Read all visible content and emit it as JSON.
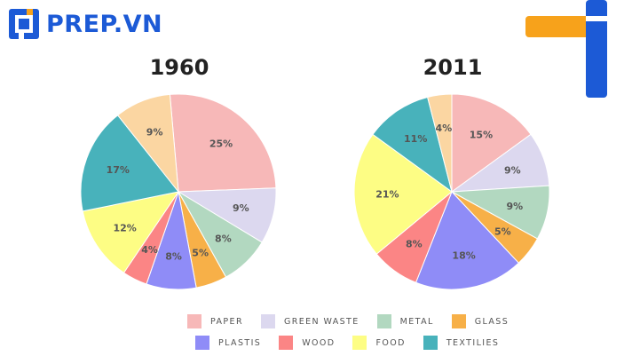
{
  "brand": {
    "name": "PREP.VN",
    "color": "#1c5ad6",
    "accent": "#f7a21b"
  },
  "chart_data": [
    {
      "type": "pie",
      "title": "1960",
      "slices": [
        {
          "label": "PAPER",
          "value": 25
        },
        {
          "label": "GREEN WASTE",
          "value": 9
        },
        {
          "label": "METAL",
          "value": 8
        },
        {
          "label": "GLASS",
          "value": 5
        },
        {
          "label": "PLASTIS",
          "value": 8
        },
        {
          "label": "WOOD",
          "value": 4
        },
        {
          "label": "FOOD",
          "value": 12
        },
        {
          "label": "TEXTILIES",
          "value": 17
        },
        {
          "label": "",
          "value": 9
        }
      ]
    },
    {
      "type": "pie",
      "title": "2011",
      "slices": [
        {
          "label": "PAPER",
          "value": 15
        },
        {
          "label": "GREEN WASTE",
          "value": 9
        },
        {
          "label": "METAL",
          "value": 9
        },
        {
          "label": "GLASS",
          "value": 5
        },
        {
          "label": "PLASTIS",
          "value": 18
        },
        {
          "label": "WOOD",
          "value": 8
        },
        {
          "label": "FOOD",
          "value": 21
        },
        {
          "label": "TEXTILIES",
          "value": 11
        },
        {
          "label": "",
          "value": 4
        }
      ]
    }
  ],
  "legend": [
    {
      "label": "PAPER",
      "color": "#f7b8b8"
    },
    {
      "label": "GREEN WASTE",
      "color": "#dcd8ef"
    },
    {
      "label": "METAL",
      "color": "#b2d8c0"
    },
    {
      "label": "GLASS",
      "color": "#f7b048"
    },
    {
      "label": "PLASTIS",
      "color": "#8f8cf7"
    },
    {
      "label": "WOOD",
      "color": "#fb8585"
    },
    {
      "label": "FOOD",
      "color": "#fdfd84"
    },
    {
      "label": "TEXTILIES",
      "color": "#48b2bb"
    }
  ],
  "unlabeled_slice_color": "#fbd6a2"
}
